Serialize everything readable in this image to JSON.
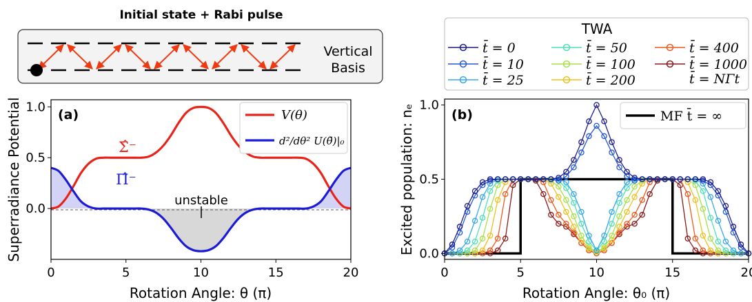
{
  "schematic": {
    "title": "Initial state + Rabi pulse",
    "basis_line1": "Vertical",
    "basis_line2": "Basis"
  },
  "legend_twa": {
    "title": "TWA",
    "entries": [
      "t̄ = 0",
      "t̄ = 10",
      "t̄ = 25",
      "t̄ = 50",
      "t̄ = 100",
      "t̄ = 200",
      "t̄ = 400",
      "t̄ = 1000"
    ],
    "note": "t̄ = NΓt"
  },
  "colors": {
    "V": "#e8241a",
    "Uxx": "#1b1bd6",
    "twa": [
      "#1a1a8c",
      "#2456d8",
      "#35a8e8",
      "#4fe0b8",
      "#a8e04a",
      "#f0c020",
      "#ee5a20",
      "#8c1818"
    ]
  },
  "chart_data": [
    {
      "type": "line",
      "panel": "(a)",
      "xlabel": "Rotation Angle: θ (π)",
      "ylabel": "Superradiance Potential",
      "xlim": [
        0,
        20
      ],
      "ylim": [
        -0.5,
        1.07
      ],
      "xticks": [
        "0",
        "5",
        "10",
        "15",
        "20"
      ],
      "yticks": [
        "0.0",
        "0.5",
        "1.0"
      ],
      "legend": [
        "V(θ)",
        "d²/dθ² U(θ̃)|₀"
      ],
      "annotations": [
        "Σ̂⁻",
        "Π̂⁻",
        "unstable"
      ],
      "series": [
        {
          "name": "V(θ)",
          "x": [
            0,
            0.5,
            1,
            1.5,
            2,
            2.5,
            3,
            3.5,
            4,
            4.5,
            5,
            5.5,
            6,
            6.5,
            7,
            7.5,
            8,
            8.5,
            9,
            9.5,
            10,
            10.5,
            11,
            11.5,
            12,
            12.5,
            13,
            13.5,
            14,
            14.5,
            15,
            15.5,
            16,
            16.5,
            17,
            17.5,
            18,
            18.5,
            19,
            19.5,
            20
          ],
          "values": [
            0,
            0.02,
            0.1,
            0.22,
            0.35,
            0.44,
            0.49,
            0.5,
            0.5,
            0.5,
            0.5,
            0.5,
            0.5,
            0.51,
            0.55,
            0.62,
            0.72,
            0.84,
            0.94,
            0.99,
            1.0,
            0.99,
            0.94,
            0.84,
            0.72,
            0.62,
            0.55,
            0.51,
            0.5,
            0.5,
            0.5,
            0.5,
            0.5,
            0.5,
            0.49,
            0.44,
            0.35,
            0.22,
            0.1,
            0.02,
            0
          ]
        },
        {
          "name": "d²/dθ² U(θ̃)|₀",
          "x": [
            0,
            0.5,
            1,
            1.5,
            2,
            2.5,
            3,
            3.5,
            4,
            4.5,
            5,
            5.5,
            6,
            6.5,
            7,
            7.5,
            8,
            8.5,
            9,
            9.5,
            10,
            10.5,
            11,
            11.5,
            12,
            12.5,
            13,
            13.5,
            14,
            14.5,
            15,
            15.5,
            16,
            16.5,
            17,
            17.5,
            18,
            18.5,
            19,
            19.5,
            20
          ],
          "values": [
            0.4,
            0.37,
            0.28,
            0.17,
            0.07,
            0.02,
            0,
            0,
            0,
            0,
            0,
            0,
            0,
            -0.01,
            -0.04,
            -0.1,
            -0.19,
            -0.29,
            -0.37,
            -0.41,
            -0.42,
            -0.41,
            -0.37,
            -0.29,
            -0.19,
            -0.1,
            -0.04,
            -0.01,
            0,
            0,
            0,
            0,
            0,
            0,
            0,
            0.02,
            0.07,
            0.17,
            0.28,
            0.37,
            0.4
          ]
        }
      ]
    },
    {
      "type": "line",
      "panel": "(b)",
      "xlabel": "Rotation Angle: θ₀ (π)",
      "ylabel": "Excited population: nₑ",
      "xlim": [
        0,
        20
      ],
      "ylim": [
        -0.04,
        1.04
      ],
      "xticks": [
        "0",
        "5",
        "10",
        "15",
        "20"
      ],
      "yticks": [
        "0.0",
        "0.5",
        "1.0"
      ],
      "legend": [
        "MF t̄ = ∞"
      ],
      "x": [
        0,
        0.5,
        1,
        1.5,
        2,
        2.5,
        3,
        3.5,
        4,
        4.5,
        5,
        5.5,
        6,
        6.5,
        7,
        7.5,
        8,
        8.5,
        9,
        9.5,
        10,
        10.5,
        11,
        11.5,
        12,
        12.5,
        13,
        13.5,
        14,
        14.5,
        15,
        15.5,
        16,
        16.5,
        17,
        17.5,
        18,
        18.5,
        19,
        19.5,
        20
      ],
      "series": [
        {
          "name": "t̄ = 0",
          "values": [
            0,
            0.06,
            0.18,
            0.32,
            0.42,
            0.48,
            0.5,
            0.5,
            0.5,
            0.5,
            0.5,
            0.5,
            0.5,
            0.5,
            0.5,
            0.51,
            0.55,
            0.63,
            0.75,
            0.89,
            1.0,
            0.89,
            0.75,
            0.63,
            0.55,
            0.51,
            0.5,
            0.5,
            0.5,
            0.5,
            0.5,
            0.5,
            0.5,
            0.5,
            0.5,
            0.48,
            0.42,
            0.32,
            0.18,
            0.06,
            0
          ]
        },
        {
          "name": "t̄ = 10",
          "values": [
            0,
            0.04,
            0.14,
            0.28,
            0.39,
            0.46,
            0.49,
            0.5,
            0.5,
            0.5,
            0.5,
            0.5,
            0.5,
            0.5,
            0.5,
            0.49,
            0.52,
            0.58,
            0.68,
            0.79,
            0.86,
            0.79,
            0.68,
            0.58,
            0.52,
            0.49,
            0.5,
            0.5,
            0.5,
            0.5,
            0.5,
            0.5,
            0.5,
            0.5,
            0.49,
            0.46,
            0.39,
            0.28,
            0.14,
            0.04,
            0
          ]
        },
        {
          "name": "t̄ = 25",
          "values": [
            0,
            0,
            0.02,
            0.08,
            0.22,
            0.38,
            0.47,
            0.5,
            0.5,
            0.5,
            0.5,
            0.5,
            0.5,
            0.5,
            0.5,
            0.5,
            0.48,
            0.4,
            0.28,
            0.12,
            0.02,
            0.12,
            0.28,
            0.4,
            0.48,
            0.5,
            0.5,
            0.5,
            0.5,
            0.5,
            0.5,
            0.5,
            0.5,
            0.5,
            0.47,
            0.38,
            0.22,
            0.08,
            0.02,
            0,
            0
          ]
        },
        {
          "name": "t̄ = 50",
          "values": [
            0,
            0,
            0,
            0.02,
            0.08,
            0.24,
            0.42,
            0.49,
            0.5,
            0.5,
            0.5,
            0.5,
            0.5,
            0.5,
            0.5,
            0.49,
            0.44,
            0.34,
            0.2,
            0.08,
            0.02,
            0.08,
            0.2,
            0.34,
            0.44,
            0.49,
            0.5,
            0.5,
            0.5,
            0.5,
            0.5,
            0.5,
            0.5,
            0.49,
            0.42,
            0.24,
            0.08,
            0.02,
            0,
            0,
            0
          ]
        },
        {
          "name": "t̄ = 100",
          "values": [
            0,
            0,
            0,
            0,
            0.02,
            0.1,
            0.3,
            0.46,
            0.5,
            0.5,
            0.5,
            0.5,
            0.5,
            0.5,
            0.49,
            0.45,
            0.36,
            0.25,
            0.12,
            0.04,
            0.01,
            0.04,
            0.12,
            0.25,
            0.36,
            0.45,
            0.49,
            0.5,
            0.5,
            0.5,
            0.5,
            0.5,
            0.5,
            0.46,
            0.3,
            0.1,
            0.02,
            0,
            0,
            0,
            0
          ]
        },
        {
          "name": "t̄ = 200",
          "values": [
            0,
            0,
            0,
            0,
            0,
            0.02,
            0.12,
            0.36,
            0.48,
            0.5,
            0.5,
            0.5,
            0.5,
            0.5,
            0.47,
            0.38,
            0.28,
            0.18,
            0.09,
            0.03,
            0.01,
            0.03,
            0.09,
            0.18,
            0.28,
            0.38,
            0.47,
            0.5,
            0.5,
            0.5,
            0.5,
            0.5,
            0.48,
            0.36,
            0.12,
            0.02,
            0,
            0,
            0,
            0,
            0
          ]
        },
        {
          "name": "t̄ = 400",
          "values": [
            0,
            0,
            0,
            0,
            0,
            0,
            0.02,
            0.1,
            0.4,
            0.5,
            0.5,
            0.5,
            0.5,
            0.48,
            0.36,
            0.26,
            0.2,
            0.14,
            0.07,
            0.02,
            0,
            0.02,
            0.07,
            0.14,
            0.2,
            0.26,
            0.36,
            0.48,
            0.5,
            0.5,
            0.5,
            0.5,
            0.4,
            0.1,
            0.02,
            0,
            0,
            0,
            0,
            0,
            0
          ]
        },
        {
          "name": "t̄ = 1000",
          "values": [
            0,
            0,
            0,
            0,
            0,
            0,
            0,
            0.02,
            0.1,
            0.46,
            0.5,
            0.5,
            0.49,
            0.4,
            0.26,
            0.2,
            0.18,
            0.13,
            0.07,
            0.02,
            0,
            0.02,
            0.07,
            0.13,
            0.18,
            0.2,
            0.26,
            0.4,
            0.49,
            0.5,
            0.5,
            0.46,
            0.1,
            0.02,
            0,
            0,
            0,
            0,
            0,
            0,
            0
          ]
        },
        {
          "name": "MF t̄ = ∞",
          "x": [
            0,
            5,
            5,
            15,
            15,
            20
          ],
          "values": [
            0,
            0,
            0.5,
            0.5,
            0,
            0
          ]
        }
      ]
    }
  ]
}
